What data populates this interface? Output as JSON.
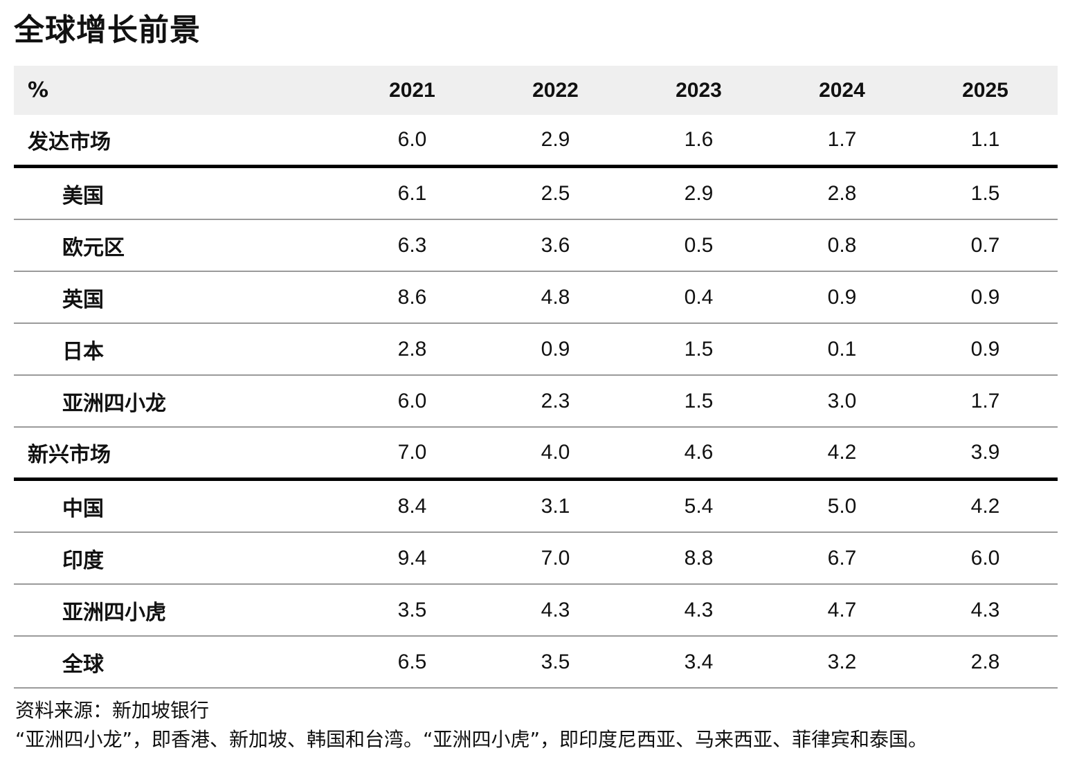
{
  "title": "全球增长前景",
  "table": {
    "columns": [
      "%",
      "2021",
      "2022",
      "2023",
      "2024",
      "2025"
    ],
    "rows": [
      {
        "name": "发达市场",
        "type": "group",
        "values": [
          "6.0",
          "2.9",
          "1.6",
          "1.7",
          "1.1"
        ]
      },
      {
        "name": "美国",
        "type": "sub",
        "values": [
          "6.1",
          "2.5",
          "2.9",
          "2.8",
          "1.5"
        ]
      },
      {
        "name": "欧元区",
        "type": "sub",
        "values": [
          "6.3",
          "3.6",
          "0.5",
          "0.8",
          "0.7"
        ]
      },
      {
        "name": "英国",
        "type": "sub",
        "values": [
          "8.6",
          "4.8",
          "0.4",
          "0.9",
          "0.9"
        ]
      },
      {
        "name": "日本",
        "type": "sub",
        "values": [
          "2.8",
          "0.9",
          "1.5",
          "0.1",
          "0.9"
        ]
      },
      {
        "name": "亚洲四小龙",
        "type": "sub",
        "values": [
          "6.0",
          "2.3",
          "1.5",
          "3.0",
          "1.7"
        ]
      },
      {
        "name": "新兴市场",
        "type": "group",
        "values": [
          "7.0",
          "4.0",
          "4.6",
          "4.2",
          "3.9"
        ]
      },
      {
        "name": "中国",
        "type": "sub",
        "values": [
          "8.4",
          "3.1",
          "5.4",
          "5.0",
          "4.2"
        ]
      },
      {
        "name": "印度",
        "type": "sub",
        "values": [
          "9.4",
          "7.0",
          "8.8",
          "6.7",
          "6.0"
        ]
      },
      {
        "name": "亚洲四小虎",
        "type": "sub",
        "values": [
          "3.5",
          "4.3",
          "4.3",
          "4.7",
          "4.3"
        ]
      },
      {
        "name": "全球",
        "type": "sub",
        "values": [
          "6.5",
          "3.5",
          "3.4",
          "3.2",
          "2.8"
        ]
      }
    ]
  },
  "notes": {
    "source": "资料来源：新加坡银行",
    "footnote": "“亚洲四小龙”，即香港、新加坡、韩国和台湾。“亚洲四小虎”，即印度尼西亚、马来西亚、菲律宾和泰国。"
  }
}
